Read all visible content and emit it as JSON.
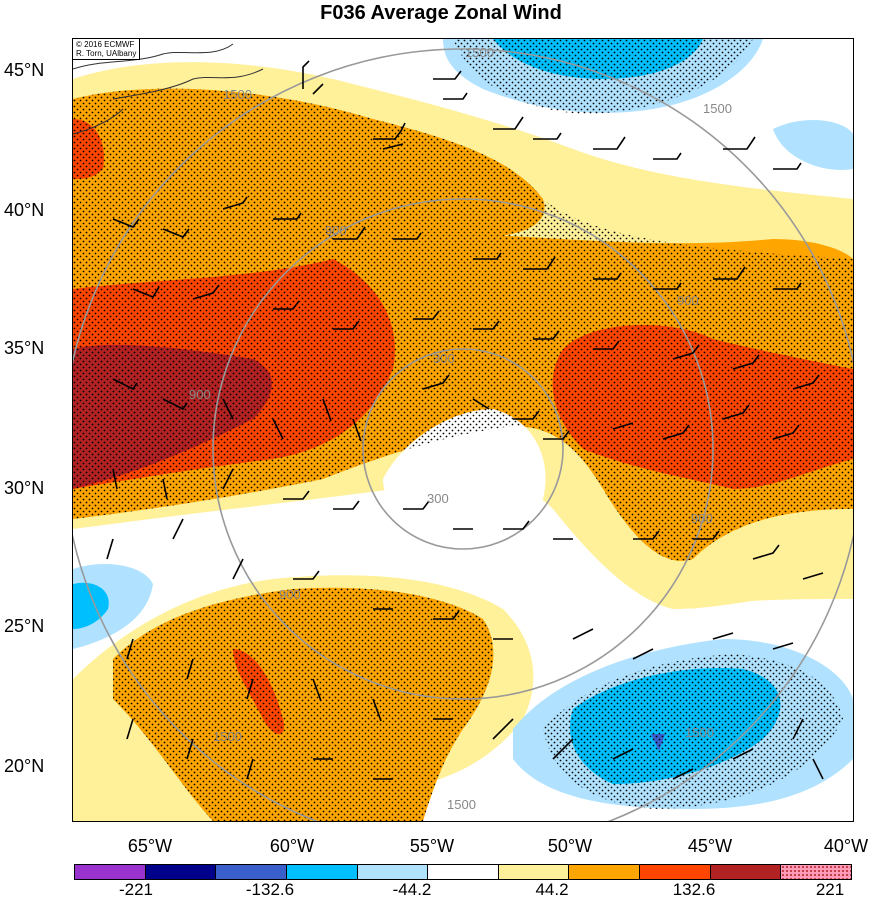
{
  "title": "F036 Average Zonal Wind",
  "credit": {
    "line1": "© 2016 ECMWF",
    "line2": "R. Torn, UAlbany"
  },
  "lat_labels": [
    "45°N",
    "40°N",
    "35°N",
    "30°N",
    "25°N",
    "20°N"
  ],
  "lon_labels": [
    "65°W",
    "60°W",
    "55°W",
    "50°W",
    "45°W",
    "40°W"
  ],
  "contour_labels": [
    "1500",
    "1500",
    "1500",
    "900",
    "900",
    "900",
    "900",
    "900",
    "300",
    "300",
    "1500",
    "1500",
    "1500"
  ],
  "colorbar": {
    "labels": [
      "-221",
      "-132.6",
      "-44.2",
      "44.2",
      "132.6",
      "221"
    ],
    "colors": [
      "#9a32cd",
      "#00008b",
      "#3a5fcd",
      "#00bfff",
      "#b0e2ff",
      "#ffffff",
      "#fff09a",
      "#ffa500",
      "#ff4500",
      "#b22222",
      "#ff9ab8"
    ]
  },
  "colors": {
    "fill_yellow": "#fff09a",
    "fill_orange": "#ffa500",
    "fill_redorange": "#ff4500",
    "fill_darkred": "#b22222",
    "fill_lightblue": "#b0e2ff",
    "fill_blue": "#00bfff",
    "contour_gray": "#999999"
  }
}
